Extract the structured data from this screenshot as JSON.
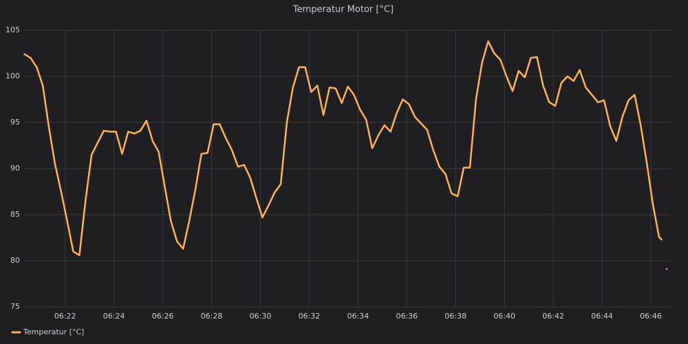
{
  "chart_data": {
    "type": "line",
    "title": "Temperatur Motor [°C]",
    "x": [
      "06:20:20",
      "06:20:35",
      "06:20:50",
      "06:21:05",
      "06:21:20",
      "06:21:35",
      "06:21:50",
      "06:22:05",
      "06:22:20",
      "06:22:35",
      "06:22:50",
      "06:23:05",
      "06:23:20",
      "06:23:35",
      "06:23:50",
      "06:24:05",
      "06:24:20",
      "06:24:35",
      "06:24:50",
      "06:25:05",
      "06:25:20",
      "06:25:35",
      "06:25:50",
      "06:26:05",
      "06:26:20",
      "06:26:35",
      "06:26:50",
      "06:27:05",
      "06:27:20",
      "06:27:35",
      "06:27:50",
      "06:28:05",
      "06:28:20",
      "06:28:35",
      "06:28:50",
      "06:29:05",
      "06:29:20",
      "06:29:35",
      "06:29:50",
      "06:30:05",
      "06:30:20",
      "06:30:35",
      "06:30:50",
      "06:31:05",
      "06:31:20",
      "06:31:35",
      "06:31:50",
      "06:32:05",
      "06:32:20",
      "06:32:35",
      "06:32:50",
      "06:33:05",
      "06:33:20",
      "06:33:35",
      "06:33:50",
      "06:34:05",
      "06:34:20",
      "06:34:35",
      "06:34:50",
      "06:35:05",
      "06:35:20",
      "06:35:35",
      "06:35:50",
      "06:36:05",
      "06:36:20",
      "06:36:35",
      "06:36:50",
      "06:37:05",
      "06:37:20",
      "06:37:35",
      "06:37:50",
      "06:38:05",
      "06:38:20",
      "06:38:35",
      "06:38:50",
      "06:39:05",
      "06:39:20",
      "06:39:35",
      "06:39:50",
      "06:40:05",
      "06:40:20",
      "06:40:35",
      "06:40:50",
      "06:41:05",
      "06:41:20",
      "06:41:35",
      "06:41:50",
      "06:42:05",
      "06:42:20",
      "06:42:35",
      "06:42:50",
      "06:43:05",
      "06:43:20",
      "06:43:35",
      "06:43:50",
      "06:44:05",
      "06:44:20",
      "06:44:35",
      "06:44:50",
      "06:45:05",
      "06:45:20",
      "06:45:35",
      "06:45:50",
      "06:46:05",
      "06:46:20",
      "06:46:26",
      "06:46:32",
      "06:46:39"
    ],
    "series": [
      {
        "name": "Temperatur [°C]",
        "color": "#ffb357",
        "values": [
          102.4,
          102,
          101,
          99,
          94.5,
          90.5,
          87.5,
          84.3,
          81,
          80.6,
          86.5,
          91.5,
          92.8,
          94.1,
          94,
          94,
          91.6,
          94,
          93.8,
          94.1,
          95.2,
          93,
          91.8,
          88,
          84.3,
          82.1,
          81.3,
          84.3,
          87.7,
          91.6,
          91.7,
          94.8,
          94.8,
          93.3,
          92,
          90.2,
          90.4,
          89,
          86.8,
          84.7,
          86,
          87.4,
          88.3,
          95,
          98.8,
          101,
          101,
          98.3,
          99,
          95.8,
          98.8,
          98.7,
          97.1,
          98.9,
          98,
          96.4,
          95.3,
          92.2,
          93.6,
          94.7,
          94,
          96,
          97.5,
          97,
          95.6,
          94.9,
          94.2,
          92,
          90.2,
          89.4,
          87.3,
          87,
          90.1,
          90.1,
          97.5,
          101.5,
          103.8,
          102.5,
          101.8,
          100,
          98.4,
          100.6,
          99.9,
          102,
          102.1,
          99,
          97.2,
          96.8,
          99.3,
          100,
          99.5,
          100.7,
          98.8,
          98,
          97.2,
          97.4,
          94.6,
          93,
          95.6,
          97.4,
          98,
          94.7,
          90.6,
          86.1,
          82.6,
          82.3,
          null,
          79.1
        ]
      }
    ],
    "xlim": [
      "06:20:19",
      "06:46:49"
    ],
    "xticks": [
      "06:22",
      "06:24",
      "06:26",
      "06:28",
      "06:30",
      "06:32",
      "06:34",
      "06:36",
      "06:38",
      "06:40",
      "06:42",
      "06:44",
      "06:46"
    ],
    "ylim": [
      75,
      105
    ],
    "yticks": [
      75,
      80,
      85,
      90,
      95,
      100,
      105
    ],
    "grid": true,
    "legend": "bottom-left"
  }
}
